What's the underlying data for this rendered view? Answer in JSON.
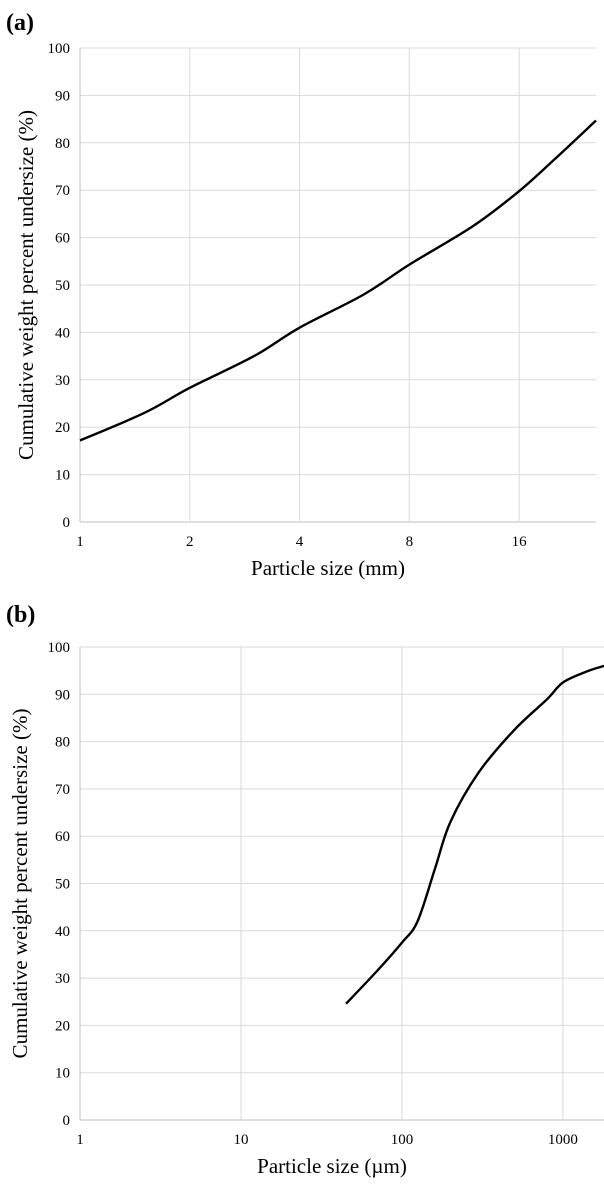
{
  "chart_data": [
    {
      "panel": "(a)",
      "type": "line",
      "xlabel": "Particle size (mm)",
      "ylabel": "Cumulative weight percent undersize (%)",
      "x_scale": "log2",
      "xlim": [
        1,
        26
      ],
      "ylim": [
        0,
        100
      ],
      "x_ticks": [
        1,
        2,
        4,
        8,
        16
      ],
      "x_tick_labels": [
        "1",
        "2",
        "4",
        "8",
        "16"
      ],
      "y_ticks": [
        0,
        10,
        20,
        30,
        40,
        50,
        60,
        70,
        80,
        90,
        100
      ],
      "grid": "vertical and horizontal",
      "legend": "none",
      "colors": {
        "line": "#000000",
        "grid": "#d9d9d9"
      },
      "series": [
        {
          "x": [
            1,
            1.5,
            2,
            3,
            4,
            6,
            8,
            12,
            16,
            20,
            26
          ],
          "values": [
            17.2,
            23.0,
            28.3,
            35.0,
            41.0,
            48.0,
            54.3,
            62.5,
            69.8,
            76.5,
            84.7
          ]
        }
      ]
    },
    {
      "panel": "(b)",
      "type": "line",
      "xlabel": "Particle size (µm)",
      "ylabel": "Cumulative weight percent undersize (%)",
      "x_scale": "log10",
      "xlim": [
        1,
        1800
      ],
      "ylim": [
        0,
        100
      ],
      "x_ticks": [
        1,
        10,
        100,
        1000
      ],
      "x_tick_labels": [
        "1",
        "10",
        "100",
        "1000"
      ],
      "y_ticks": [
        0,
        10,
        20,
        30,
        40,
        50,
        60,
        70,
        80,
        90,
        100
      ],
      "grid": "vertical and horizontal",
      "legend": "none",
      "colors": {
        "line": "#000000",
        "grid": "#d9d9d9"
      },
      "series": [
        {
          "x": [
            45,
            70,
            100,
            125,
            160,
            200,
            300,
            500,
            800,
            1000,
            1400,
            1800
          ],
          "values": [
            24.6,
            31.5,
            37.5,
            42.0,
            53.0,
            63.0,
            73.5,
            82.5,
            89.0,
            92.5,
            94.8,
            96.0
          ]
        }
      ]
    }
  ]
}
